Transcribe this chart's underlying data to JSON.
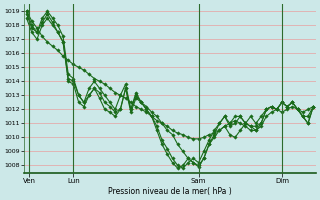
{
  "bg_color": "#cce8e8",
  "grid_color": "#e8a0a0",
  "line_color": "#1a6b1a",
  "marker_color": "#1a6b1a",
  "xlabel": "Pression niveau de la mer( hPa )",
  "ylim": [
    1007.5,
    1019.5
  ],
  "yticks": [
    1008,
    1009,
    1010,
    1011,
    1012,
    1013,
    1014,
    1015,
    1016,
    1017,
    1018,
    1019
  ],
  "day_labels": [
    "Ven",
    "Lun",
    "Sam",
    "Dim"
  ],
  "day_positions": [
    0.5,
    9,
    33,
    49
  ],
  "series1_x": [
    0,
    1,
    2,
    3,
    4,
    5,
    6,
    7,
    8,
    9,
    10,
    11,
    12,
    13,
    14,
    15,
    16,
    17,
    18,
    19,
    20,
    21,
    22,
    23,
    24,
    25,
    26,
    27,
    28,
    29,
    30,
    31,
    32,
    33,
    34,
    35,
    36,
    37,
    38,
    39,
    40,
    41,
    42,
    43,
    44,
    45,
    46,
    47,
    48,
    49,
    50,
    51,
    52,
    53,
    54,
    55
  ],
  "series1_y": [
    1019.0,
    1018.3,
    1017.8,
    1017.2,
    1016.8,
    1016.5,
    1016.2,
    1015.8,
    1015.5,
    1015.2,
    1015.0,
    1014.8,
    1014.5,
    1014.2,
    1014.0,
    1013.8,
    1013.5,
    1013.2,
    1013.0,
    1012.8,
    1012.5,
    1012.2,
    1012.0,
    1011.8,
    1011.5,
    1011.2,
    1011.0,
    1010.8,
    1010.5,
    1010.3,
    1010.2,
    1010.0,
    1009.9,
    1009.9,
    1010.0,
    1010.2,
    1010.3,
    1010.5,
    1010.8,
    1011.0,
    1011.2,
    1011.0,
    1010.8,
    1010.5,
    1010.5,
    1010.8,
    1011.5,
    1011.8,
    1012.0,
    1011.8,
    1012.0,
    1012.2,
    1012.0,
    1011.8,
    1012.0,
    1012.2
  ],
  "series2_x": [
    0,
    1,
    2,
    3,
    4,
    5,
    6,
    7,
    8,
    9,
    10,
    11,
    12,
    13,
    14,
    15,
    16,
    17,
    18,
    19,
    20,
    21,
    22,
    23,
    24,
    25,
    26,
    27,
    28,
    29,
    30,
    31,
    32,
    33,
    34,
    35,
    36,
    37,
    38,
    39,
    40,
    41,
    42,
    43,
    44,
    45,
    46,
    47,
    48,
    49,
    50,
    51,
    52,
    53,
    54,
    55
  ],
  "series2_y": [
    1018.8,
    1017.8,
    1017.5,
    1018.2,
    1018.8,
    1018.2,
    1017.5,
    1016.8,
    1014.2,
    1014.0,
    1013.0,
    1012.5,
    1013.0,
    1013.5,
    1013.2,
    1012.5,
    1012.2,
    1011.8,
    1012.0,
    1013.5,
    1012.0,
    1013.0,
    1012.5,
    1012.2,
    1011.8,
    1011.5,
    1011.0,
    1010.5,
    1010.2,
    1009.5,
    1009.0,
    1008.5,
    1008.2,
    1008.0,
    1008.5,
    1009.5,
    1010.0,
    1010.5,
    1010.8,
    1010.2,
    1010.0,
    1010.5,
    1011.0,
    1011.5,
    1011.0,
    1011.5,
    1012.0,
    1012.2,
    1012.0,
    1012.5,
    1012.2,
    1012.5,
    1012.0,
    1011.5,
    1011.5,
    1012.2
  ],
  "series3_x": [
    0,
    1,
    2,
    3,
    4,
    5,
    6,
    7,
    8,
    9,
    10,
    11,
    12,
    13,
    14,
    15,
    16,
    17,
    18,
    19,
    20,
    21,
    22,
    23,
    24,
    25,
    26,
    27,
    28,
    29,
    30,
    31,
    32,
    33,
    34,
    35,
    36,
    37,
    38,
    39,
    40,
    41,
    42,
    43,
    44,
    45,
    46,
    47,
    48,
    49,
    50,
    51,
    52,
    53,
    54,
    55
  ],
  "series3_y": [
    1019.0,
    1018.0,
    1017.5,
    1018.5,
    1019.0,
    1018.5,
    1018.0,
    1017.2,
    1014.5,
    1014.2,
    1013.0,
    1012.5,
    1013.5,
    1014.0,
    1013.5,
    1013.0,
    1012.5,
    1012.0,
    1013.0,
    1013.8,
    1012.0,
    1013.2,
    1012.5,
    1012.0,
    1011.5,
    1010.8,
    1009.8,
    1009.2,
    1008.5,
    1008.0,
    1007.8,
    1008.2,
    1008.5,
    1008.2,
    1009.0,
    1009.8,
    1010.5,
    1011.0,
    1011.5,
    1011.0,
    1011.5,
    1011.5,
    1011.0,
    1010.8,
    1010.8,
    1011.0,
    1012.0,
    1012.2,
    1012.0,
    1012.5,
    1012.2,
    1012.5,
    1012.0,
    1011.5,
    1011.0,
    1012.2
  ],
  "series4_x": [
    0,
    1,
    2,
    3,
    4,
    5,
    6,
    7,
    8,
    9,
    10,
    11,
    12,
    13,
    14,
    15,
    16,
    17,
    18,
    19,
    20,
    21,
    22,
    23,
    24,
    25,
    26,
    27,
    28,
    29,
    30,
    31,
    32,
    33,
    34,
    35,
    36,
    37,
    38,
    39,
    40,
    41,
    42,
    43,
    44,
    45,
    46,
    47,
    48,
    49,
    50,
    51,
    52,
    53,
    54,
    55
  ],
  "series4_y": [
    1018.5,
    1017.5,
    1017.0,
    1018.0,
    1018.5,
    1018.0,
    1017.5,
    1016.8,
    1014.0,
    1013.8,
    1012.5,
    1012.2,
    1013.0,
    1013.5,
    1012.8,
    1012.0,
    1011.8,
    1011.5,
    1012.0,
    1013.5,
    1011.8,
    1012.8,
    1012.5,
    1012.0,
    1011.5,
    1010.5,
    1009.5,
    1008.8,
    1008.2,
    1007.8,
    1008.0,
    1008.5,
    1008.2,
    1007.9,
    1008.5,
    1009.5,
    1010.2,
    1011.0,
    1011.5,
    1010.8,
    1011.0,
    1011.5,
    1011.0,
    1010.8,
    1010.5,
    1011.0,
    1012.0,
    1012.2,
    1012.0,
    1012.5,
    1012.2,
    1012.5,
    1012.0,
    1011.5,
    1011.0,
    1012.2
  ]
}
